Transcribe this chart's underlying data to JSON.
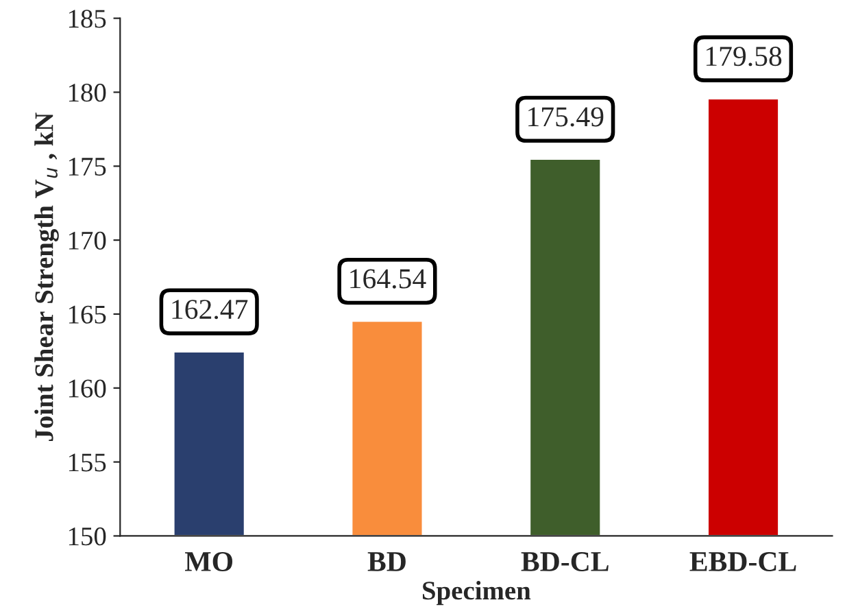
{
  "chart_data": {
    "type": "bar",
    "xlabel": "Specimen",
    "ylabel": "Joint Shear Strength V$_{u}$ , kN",
    "categories": [
      "MO",
      "BD",
      "BD-CL",
      "EBD-CL"
    ],
    "values": [
      162.47,
      164.54,
      175.49,
      179.58
    ],
    "colors": [
      "#2a3f6e",
      "#f98d3c",
      "#3f5e2b",
      "#cc0000"
    ],
    "ylim": [
      150,
      185
    ],
    "yticks": [
      150,
      155,
      160,
      165,
      170,
      175,
      180,
      185
    ],
    "data_labels": true,
    "grid": false,
    "legend": false
  }
}
